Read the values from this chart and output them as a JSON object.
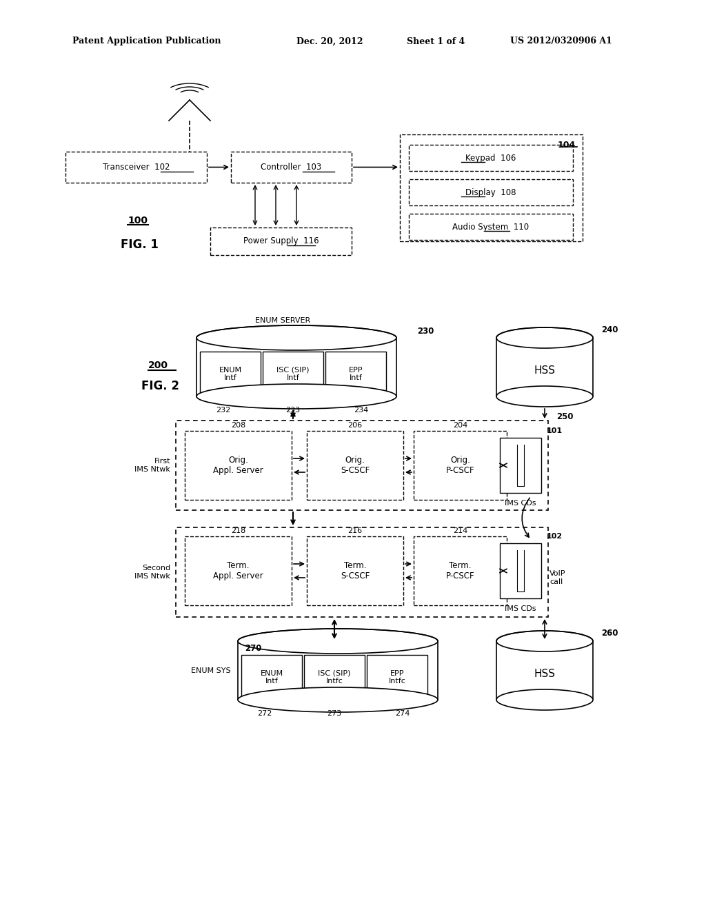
{
  "bg_color": "#ffffff",
  "header_line1": "Patent Application Publication",
  "header_line2": "Dec. 20, 2012",
  "header_line3": "Sheet 1 of 4",
  "header_line4": "US 2012/0320906 A1"
}
